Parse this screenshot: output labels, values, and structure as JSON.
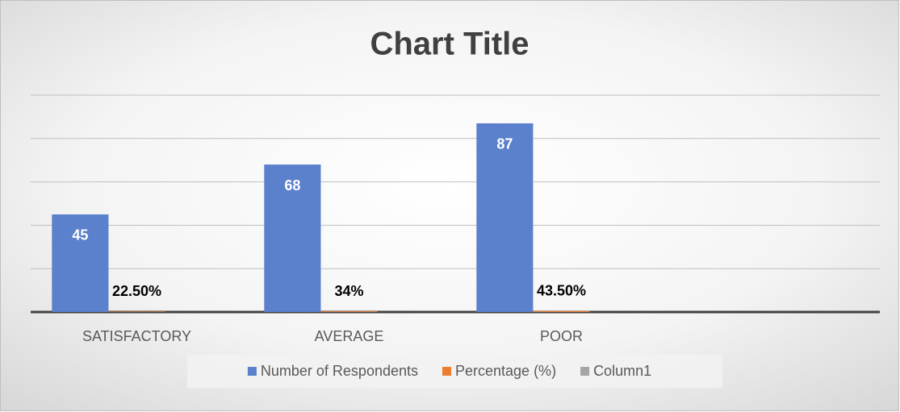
{
  "chart_data": {
    "type": "bar",
    "title": "Chart Title",
    "categories": [
      "SATISFACTORY",
      "AVERAGE",
      "POOR",
      null
    ],
    "series": [
      {
        "name": "Number of Respondents",
        "color": "#5b80cc",
        "values": [
          45,
          68,
          87,
          null
        ]
      },
      {
        "name": "Percentage (%)",
        "color": "#ed7d31",
        "values": [
          0.225,
          0.34,
          0.435,
          null
        ],
        "value_labels": [
          "22.50%",
          "34%",
          "43.50%",
          null
        ]
      },
      {
        "name": "Column1",
        "color": "#a5a5a5",
        "values": [
          null,
          null,
          null,
          null
        ]
      }
    ],
    "ylim": [
      0,
      100
    ],
    "yticks": [
      0,
      20,
      40,
      60,
      80,
      100
    ],
    "grid": true,
    "legend": "bottom"
  }
}
